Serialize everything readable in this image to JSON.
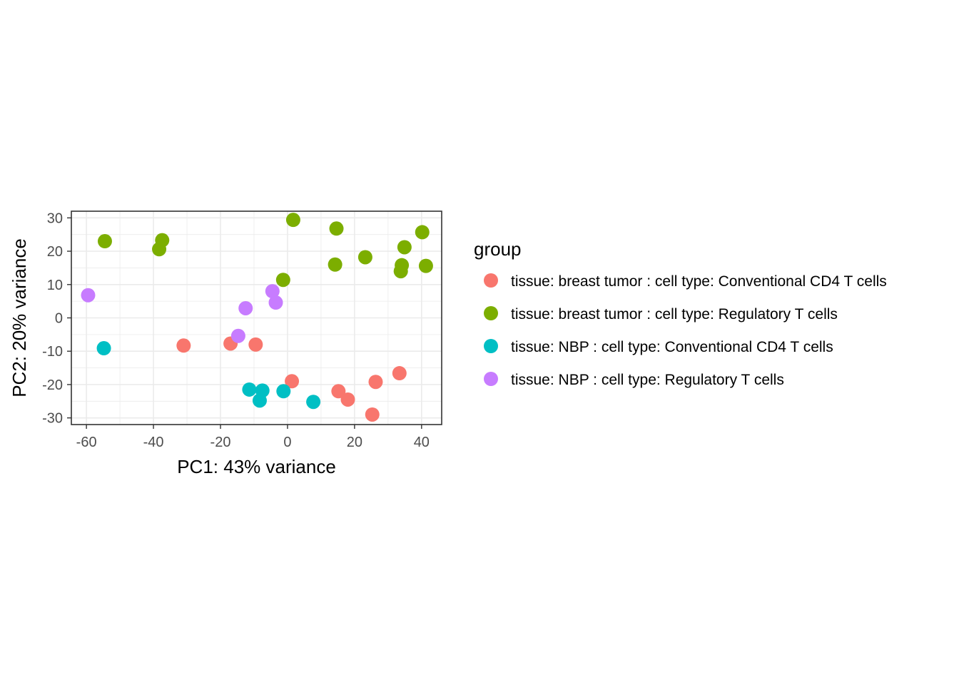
{
  "chart_data": {
    "type": "scatter",
    "title": "",
    "xlabel": "PC1: 43% variance",
    "ylabel": "PC2: 20% variance",
    "xlim": [
      -64.5,
      46
    ],
    "ylim": [
      -32,
      32
    ],
    "xticks": [
      -60,
      -40,
      -20,
      0,
      20,
      40
    ],
    "yticks": [
      -30,
      -20,
      -10,
      0,
      10,
      20,
      30
    ],
    "grid": true,
    "legend_title": "group",
    "legend_position": "right",
    "series": [
      {
        "name": "tissue: breast tumor : cell type: Conventional CD4 T cells",
        "color": "#F8766D",
        "points": [
          {
            "x": -31,
            "y": -8.3
          },
          {
            "x": -17,
            "y": -7.7
          },
          {
            "x": -9.5,
            "y": -8.0
          },
          {
            "x": 1.3,
            "y": -19.0
          },
          {
            "x": 15.2,
            "y": -22.0
          },
          {
            "x": 18,
            "y": -24.5
          },
          {
            "x": 26.3,
            "y": -19.2
          },
          {
            "x": 33.4,
            "y": -16.6
          },
          {
            "x": 25.3,
            "y": -29.0
          }
        ]
      },
      {
        "name": "tissue: breast tumor : cell type: Regulatory T cells",
        "color": "#7CAE00",
        "points": [
          {
            "x": -54.5,
            "y": 23.0
          },
          {
            "x": -37.4,
            "y": 23.3
          },
          {
            "x": -38.3,
            "y": 20.6
          },
          {
            "x": -1.3,
            "y": 11.4
          },
          {
            "x": 1.7,
            "y": 29.4
          },
          {
            "x": 14.6,
            "y": 26.8
          },
          {
            "x": 14.2,
            "y": 16.0
          },
          {
            "x": 23.2,
            "y": 18.2
          },
          {
            "x": 40.2,
            "y": 25.7
          },
          {
            "x": 34.9,
            "y": 21.2
          },
          {
            "x": 34.1,
            "y": 15.8
          },
          {
            "x": 33.8,
            "y": 14.0
          },
          {
            "x": 41.3,
            "y": 15.6
          }
        ]
      },
      {
        "name": "tissue: NBP : cell type: Conventional CD4 T cells",
        "color": "#00BFC4",
        "points": [
          {
            "x": -54.8,
            "y": -9.1
          },
          {
            "x": -11.4,
            "y": -21.5
          },
          {
            "x": -7.5,
            "y": -21.8
          },
          {
            "x": -8.3,
            "y": -24.8
          },
          {
            "x": -1.2,
            "y": -22.0
          },
          {
            "x": 7.7,
            "y": -25.2
          }
        ]
      },
      {
        "name": "tissue: NBP : cell type: Regulatory T cells",
        "color": "#C77CFF",
        "points": [
          {
            "x": -59.5,
            "y": 6.8
          },
          {
            "x": -12.5,
            "y": 2.9
          },
          {
            "x": -4.5,
            "y": 8.0
          },
          {
            "x": -3.5,
            "y": 4.6
          },
          {
            "x": -14.7,
            "y": -5.4
          }
        ]
      }
    ]
  }
}
